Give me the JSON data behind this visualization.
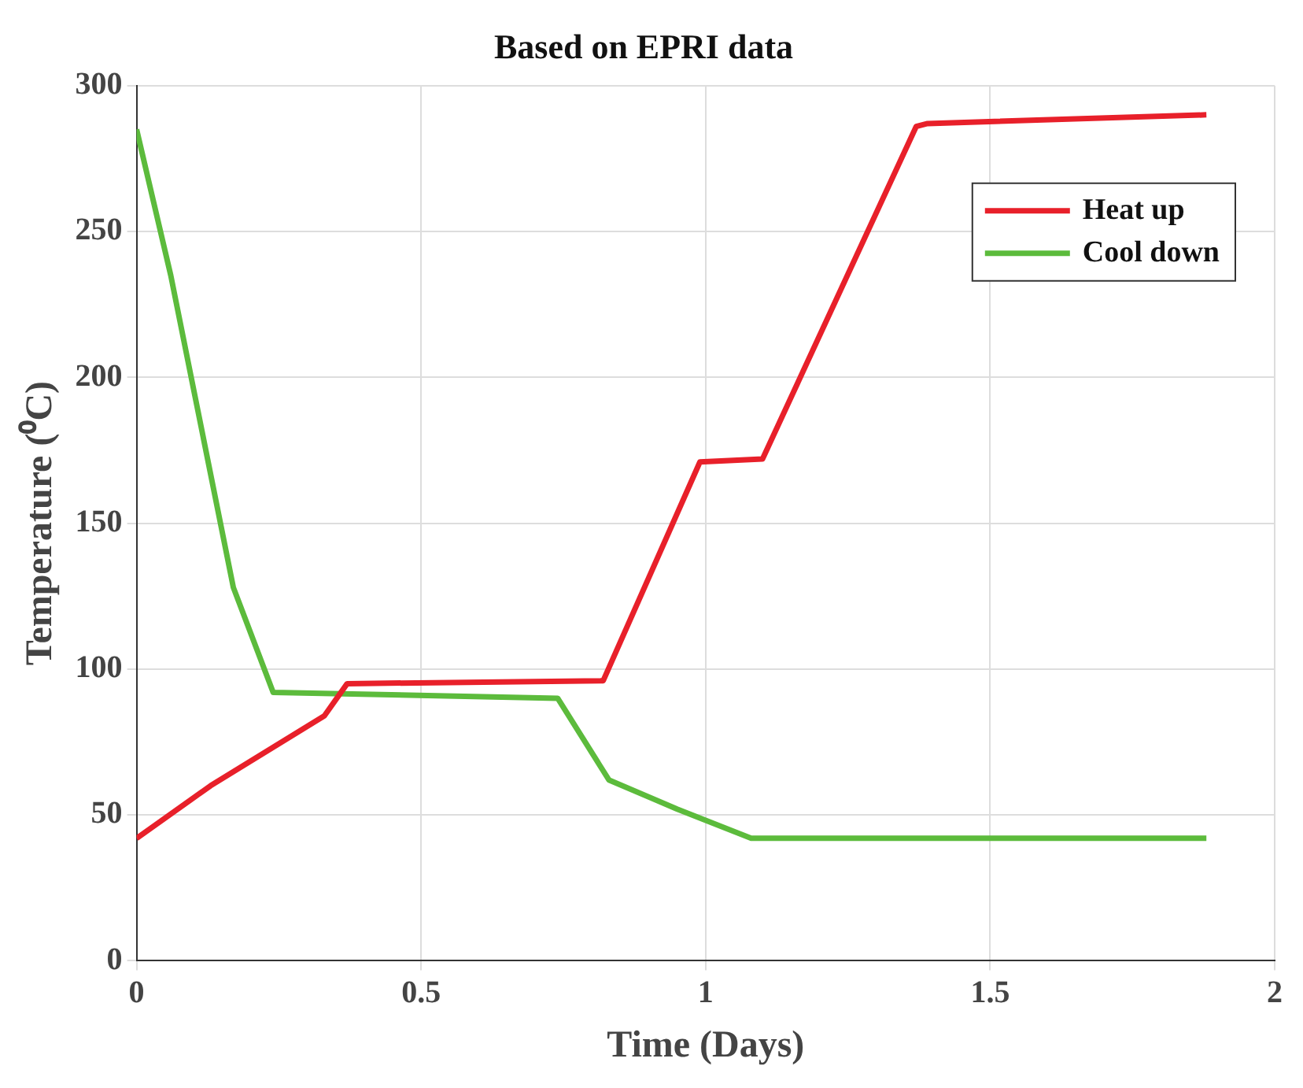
{
  "chart_data": {
    "type": "line",
    "title": "Based on EPRI data",
    "xlabel": "Time (Days)",
    "ylabel": "Temperature (⁰C)",
    "xlim": [
      0,
      2
    ],
    "xticks": [
      0,
      0.5,
      1,
      1.5,
      2
    ],
    "ylim": [
      0,
      300
    ],
    "yticks": [
      0,
      50,
      100,
      150,
      200,
      250,
      300
    ],
    "grid": true,
    "legend": "top right",
    "series": [
      {
        "name": "Heat up",
        "color": "#e8202a",
        "x": [
          0,
          0.13,
          0.33,
          0.37,
          0.82,
          0.99,
          1.1,
          1.37,
          1.39,
          1.88
        ],
        "values": [
          42,
          60,
          84,
          95,
          96,
          171,
          172,
          286,
          287,
          290
        ]
      },
      {
        "name": "Cool down",
        "color": "#5cbb3c",
        "x": [
          0,
          0.06,
          0.17,
          0.24,
          0.74,
          0.83,
          0.95,
          1.08,
          1.88
        ],
        "values": [
          285,
          235,
          128,
          92,
          90,
          62,
          52,
          42,
          42
        ]
      }
    ]
  }
}
